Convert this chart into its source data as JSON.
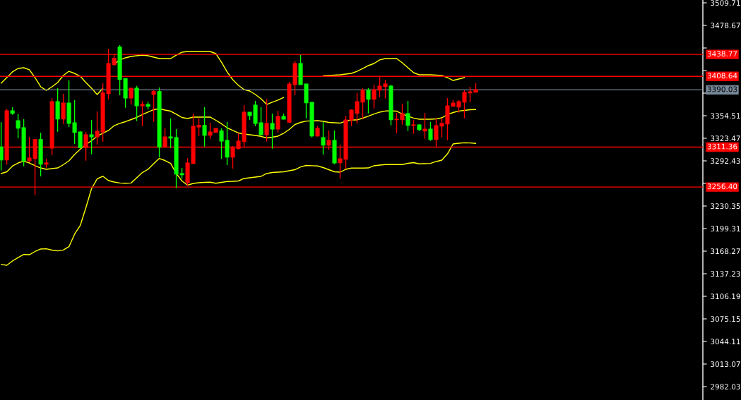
{
  "chart_data": {
    "type": "candlestick",
    "categories": [
      null,
      null,
      null,
      null,
      null,
      null,
      null,
      null,
      null,
      null,
      null,
      null,
      null,
      null,
      null,
      null,
      null,
      null,
      null,
      null,
      null,
      null,
      null,
      null,
      null,
      null,
      null,
      null,
      null,
      null,
      null,
      null,
      null,
      null,
      null,
      null,
      null,
      null,
      null,
      null,
      null,
      null,
      null,
      null,
      null,
      null,
      null,
      null,
      null,
      null,
      null,
      null,
      null,
      null,
      null,
      null,
      null,
      null,
      null,
      null,
      null,
      null,
      null,
      null,
      null,
      null,
      null,
      null,
      null,
      null,
      null,
      null,
      null,
      null,
      null,
      null,
      null,
      null,
      null,
      null,
      null,
      null,
      null,
      null,
      null,
      null,
      null,
      null,
      null,
      null,
      null,
      null,
      null,
      null,
      null,
      null,
      null,
      null,
      null,
      null,
      null,
      null,
      null,
      null,
      null,
      null,
      null,
      null,
      null,
      null,
      null,
      null,
      null,
      null,
      null,
      null,
      null,
      null,
      null,
      null,
      null,
      null,
      null,
      null,
      null
    ],
    "ohlc": [
      [
        3311.5,
        3345.5,
        3279.2,
        3293.7
      ],
      [
        3293.7,
        3363.9,
        3287.3,
        3361.3
      ],
      [
        3361.3,
        3366.2,
        3355.8,
        3357.7
      ],
      [
        3347.7,
        3356.8,
        3323.5,
        3337.4
      ],
      [
        3338.0,
        3349.7,
        3285.0,
        3292.7
      ],
      [
        3292.7,
        3325.4,
        3290.5,
        3296.3
      ],
      [
        3295.6,
        3321.8,
        3245.2,
        3321.8
      ],
      [
        3321.8,
        3331.2,
        3271.1,
        3287.9
      ],
      [
        3287.9,
        3295.4,
        3283.0,
        3289.5
      ],
      [
        3309.9,
        3378.8,
        3300.2,
        3373.9
      ],
      [
        3373.9,
        3392.4,
        3332.5,
        3350.0
      ],
      [
        3350.0,
        3384.6,
        3343.2,
        3372.0
      ],
      [
        3372.0,
        3403.0,
        3339.0,
        3343.9
      ],
      [
        3344.8,
        3375.9,
        3315.7,
        3331.5
      ],
      [
        3332.2,
        3333.2,
        3309.9,
        3310.6
      ],
      [
        3310.6,
        3332.2,
        3292.7,
        3328.3
      ],
      [
        3328.3,
        3348.7,
        3301.5,
        3325.4
      ],
      [
        3325.4,
        3360.3,
        3314.8,
        3333.2
      ],
      [
        3332.2,
        3399.1,
        3318.6,
        3385.8
      ],
      [
        3384.9,
        3446.7,
        3376.8,
        3426.3
      ],
      [
        3424.7,
        3439.9,
        3423.1,
        3433.4
      ],
      [
        3448.9,
        3451.5,
        3382.7,
        3404.3
      ],
      [
        3405.3,
        3405.3,
        3365.5,
        3378.8
      ],
      [
        3378.8,
        3392.4,
        3370.0,
        3392.4
      ],
      [
        3392.4,
        3395.6,
        3347.1,
        3368.1
      ],
      [
        3368.1,
        3374.9,
        3340.3,
        3370.0
      ],
      [
        3370.0,
        3373.6,
        3363.3,
        3367.4
      ],
      [
        3383.9,
        3389.4,
        3346.1,
        3387.8
      ],
      [
        3387.8,
        3393.3,
        3297.0,
        3311.5
      ],
      [
        3311.5,
        3337.1,
        3309.9,
        3325.4
      ],
      [
        3325.4,
        3350.9,
        3309.9,
        3323.8
      ],
      [
        3324.5,
        3336.1,
        3254.9,
        3274.3
      ],
      [
        3275.0,
        3282.7,
        3267.9,
        3273.3
      ],
      [
        3262.4,
        3296.3,
        3258.2,
        3289.5
      ],
      [
        3288.9,
        3357.4,
        3288.9,
        3340.0
      ],
      [
        3339.0,
        3350.9,
        3326.7,
        3341.2
      ],
      [
        3341.2,
        3366.2,
        3312.1,
        3327.6
      ],
      [
        3327.6,
        3344.8,
        3322.8,
        3332.2
      ],
      [
        3331.5,
        3337.1,
        3331.5,
        3337.1
      ],
      [
        3333.5,
        3337.1,
        3295.4,
        3319.6
      ],
      [
        3320.6,
        3345.8,
        3286.6,
        3297.6
      ],
      [
        3297.6,
        3313.1,
        3281.8,
        3310.2
      ],
      [
        3309.2,
        3330.3,
        3308.3,
        3319.6
      ],
      [
        3318.9,
        3369.1,
        3311.5,
        3359.4
      ],
      [
        3359.4,
        3359.4,
        3348.7,
        3354.8
      ],
      [
        3369.1,
        3374.9,
        3340.3,
        3343.9
      ],
      [
        3344.8,
        3366.2,
        3327.6,
        3328.3
      ],
      [
        3328.3,
        3377.1,
        3318.9,
        3343.9
      ],
      [
        3343.9,
        3357.4,
        3309.2,
        3336.1
      ],
      [
        3336.1,
        3361.3,
        3331.5,
        3353.6
      ],
      [
        3353.6,
        3357.4,
        3349.7,
        3349.7
      ],
      [
        3345.5,
        3401.1,
        3344.8,
        3398.2
      ],
      [
        3397.2,
        3430.2,
        3382.9,
        3426.3
      ],
      [
        3426.3,
        3437.9,
        3397.2,
        3397.2
      ],
      [
        3398.2,
        3398.2,
        3350.9,
        3372.3
      ],
      [
        3373.0,
        3373.0,
        3324.5,
        3326.7
      ],
      [
        3326.7,
        3340.0,
        3325.7,
        3337.1
      ],
      [
        3324.5,
        3345.8,
        3301.2,
        3314.1
      ],
      [
        3314.1,
        3334.2,
        3307.3,
        3320.6
      ],
      [
        3320.6,
        3334.2,
        3287.9,
        3289.5
      ],
      [
        3289.8,
        3314.8,
        3267.9,
        3295.4
      ],
      [
        3294.7,
        3354.5,
        3281.5,
        3348.7
      ],
      [
        3348.7,
        3363.3,
        3340.3,
        3362.3
      ],
      [
        3357.7,
        3385.6,
        3344.1,
        3373.9
      ],
      [
        3373.2,
        3392.4,
        3349.7,
        3389.4
      ],
      [
        3389.4,
        3392.4,
        3357.7,
        3377.1
      ],
      [
        3377.1,
        3397.2,
        3364.5,
        3390.4
      ],
      [
        3389.7,
        3407.9,
        3380.0,
        3395.3
      ],
      [
        3394.6,
        3404.0,
        3378.1,
        3398.2
      ],
      [
        3395.3,
        3397.2,
        3341.2,
        3349.0
      ],
      [
        3349.0,
        3358.4,
        3330.6,
        3349.7
      ],
      [
        3349.0,
        3371.0,
        3342.2,
        3357.4
      ],
      [
        3357.4,
        3374.9,
        3333.5,
        3341.2
      ],
      [
        3341.2,
        3348.7,
        3329.6,
        3341.9
      ],
      [
        3341.9,
        3342.9,
        3333.5,
        3335.4
      ],
      [
        3333.5,
        3358.4,
        3322.8,
        3336.1
      ],
      [
        3336.1,
        3345.8,
        3319.9,
        3321.8
      ],
      [
        3321.8,
        3350.9,
        3312.1,
        3340.9
      ],
      [
        3340.3,
        3351.6,
        3324.7,
        3343.9
      ],
      [
        3343.2,
        3378.8,
        3320.9,
        3368.1
      ],
      [
        3367.4,
        3375.9,
        3367.4,
        3372.0
      ],
      [
        3366.5,
        3375.9,
        3358.7,
        3373.9
      ],
      [
        3373.2,
        3389.4,
        3350.9,
        3386.5
      ],
      [
        3385.8,
        3394.3,
        3373.2,
        3387.5
      ],
      [
        3386.8,
        3399.1,
        3386.5,
        3390.4
      ],
      null,
      null,
      null,
      null,
      null,
      null,
      null,
      null,
      null,
      null,
      null,
      null,
      null,
      null,
      null,
      null,
      null,
      null,
      null,
      null,
      null,
      null,
      null,
      null,
      null,
      null,
      null,
      null,
      null,
      null,
      null,
      null,
      null,
      null,
      null,
      null,
      null,
      null,
      null,
      null
    ],
    "colors": [
      "#00ff00",
      "#ff0000",
      "#00ff00",
      "#00ff00",
      "#00ff00",
      "#ff0000",
      "#ff0000",
      "#00ff00",
      "#ff0000",
      "#ff0000",
      "#00ff00",
      "#ff0000",
      "#00ff00",
      "#00ff00",
      "#00ff00",
      "#ff0000",
      "#00ff00",
      "#ff0000",
      "#ff0000",
      "#ff0000",
      "#ff0000",
      "#00ff00",
      "#00ff00",
      "#ff0000",
      "#00ff00",
      "#ff0000",
      "#00ff00",
      "#ff0000",
      "#00ff00",
      "#ff0000",
      "#00ff00",
      "#00ff00",
      "#00ff00",
      "#ff0000",
      "#ff0000",
      "#ff0000",
      "#00ff00",
      "#ff0000",
      "#ff0000",
      "#00ff00",
      "#00ff00",
      "#ff0000",
      "#ff0000",
      "#ff0000",
      "#00ff00",
      "#00ff00",
      "#00ff00",
      "#ff0000",
      "#00ff00",
      "#ff0000",
      "#00ff00",
      "#ff0000",
      "#ff0000",
      "#00ff00",
      "#00ff00",
      "#00ff00",
      "#ff0000",
      "#00ff00",
      "#ff0000",
      "#00ff00",
      "#ff0000",
      "#ff0000",
      "#ff0000",
      "#ff0000",
      "#ff0000",
      "#00ff00",
      "#ff0000",
      "#ff0000",
      "#ff0000",
      "#00ff00",
      "#ff0000",
      "#ff0000",
      "#00ff00",
      "#ff0000",
      "#00ff00",
      "#ff0000",
      "#00ff00",
      "#ff0000",
      "#ff0000",
      "#ff0000",
      "#ff0000",
      "#ff0000",
      "#ff0000",
      "#ff0000",
      "#ff0000",
      null,
      null,
      null,
      null,
      null,
      null,
      null,
      null,
      null,
      null,
      null,
      null,
      null,
      null,
      null,
      null,
      null,
      null,
      null,
      null,
      null,
      null,
      null,
      null,
      null,
      null,
      null,
      null,
      null,
      null,
      null,
      null,
      null,
      null,
      null,
      null,
      null,
      null,
      null,
      null
    ],
    "series": [
      {
        "type": "line",
        "color": "#ffff00",
        "values": [
          3399.1,
          3406.9,
          3414.7,
          3419.5,
          3420.5,
          3417.6,
          3406.9,
          3394.3,
          3389.4,
          3394.3,
          3400.1,
          3409.8,
          3415.6,
          3412.7,
          3408.8,
          3400.1,
          3392.4,
          3383.6,
          3392.4,
          null,
          3425.3,
          3431.2,
          3434.1,
          3436.0,
          3437.0,
          3437.9,
          3437.0,
          3435.0,
          3433.1,
          3433.1,
          3433.1,
          3437.9,
          3441.8,
          3442.8,
          3442.8,
          3442.8,
          3442.8,
          3442.8,
          3439.9,
          3428.2,
          3414.7,
          3404.0,
          3396.2,
          3390.4,
          3388.5,
          3383.6,
          3377.8,
          3370.0,
          3373.0,
          3375.9,
          3379.7,
          null,
          null,
          null,
          null,
          null,
          null,
          3409.3,
          3409.8,
          3410.3,
          3410.8,
          3411.8,
          3412.7,
          3415.6,
          3419.5,
          3423.4,
          3426.3,
          3431.2,
          3433.1,
          3433.1,
          3433.1,
          3427.3,
          3420.5,
          3413.7,
          3410.8,
          3410.8,
          3410.8,
          3410.3,
          3409.8,
          3406.9,
          3403.0,
          3405.0,
          3406.9,
          null,
          null,
          null,
          null,
          null,
          null,
          null,
          null,
          null,
          null,
          null,
          null,
          null,
          null,
          null,
          null,
          null,
          null,
          null,
          null,
          null,
          null,
          null,
          null,
          null,
          null,
          null,
          null,
          null,
          null,
          null,
          null,
          null,
          null,
          null,
          null,
          null,
          null,
          null,
          null,
          null,
          null
        ]
      },
      {
        "type": "line",
        "color": "#ffff00",
        "values": [
          3275.0,
          3277.4,
          3285.2,
          3289.5,
          3292.0,
          3289.5,
          3285.7,
          3282.7,
          3280.8,
          3281.8,
          3282.7,
          3287.1,
          3292.4,
          3301.2,
          3308.4,
          3314.8,
          3320.1,
          3326.4,
          3330.3,
          3334.2,
          3340.9,
          3343.9,
          3346.3,
          3349.2,
          3352.1,
          3356.0,
          3359.4,
          3362.8,
          3364.2,
          3362.3,
          3360.8,
          3356.5,
          3352.1,
          3350.6,
          3352.6,
          3352.6,
          3352.6,
          3352.6,
          3348.2,
          3343.4,
          3338.0,
          3334.2,
          3330.8,
          3329.3,
          3328.3,
          3327.4,
          3326.1,
          3324.0,
          3324.9,
          3326.4,
          3330.3,
          3335.6,
          3342.4,
          3345.3,
          3347.1,
          3347.4,
          3347.7,
          3346.8,
          3345.3,
          3344.8,
          3344.3,
          3347.2,
          3348.7,
          3348.7,
          3351.1,
          3354.0,
          3356.8,
          3359.4,
          3361.0,
          3361.0,
          3360.8,
          3356.9,
          3354.0,
          3351.3,
          3349.7,
          3349.7,
          3349.7,
          3350.2,
          3351.6,
          3356.0,
          3358.9,
          3361.0,
          3361.8,
          3362.7,
          3363.0,
          null,
          null,
          null,
          null,
          null,
          null,
          null,
          null,
          null,
          null,
          null,
          null,
          null,
          null,
          null,
          null,
          null,
          null,
          null,
          null,
          null,
          null,
          null,
          null,
          null,
          null,
          null,
          null,
          null,
          null,
          null,
          null,
          null,
          null,
          null,
          null,
          null,
          null,
          null,
          null
        ]
      },
      {
        "type": "line",
        "color": "#ffff00",
        "values": [
          3150.0,
          3148.9,
          3154.7,
          3159.5,
          3163.7,
          3163.4,
          3167.8,
          3171.2,
          3171.6,
          3169.7,
          3168.6,
          3169.9,
          3174.4,
          3191.6,
          3203.5,
          3227.9,
          3254.1,
          3267.7,
          3271.3,
          3265.3,
          3263.3,
          3262.0,
          3261.6,
          3262.0,
          3269.2,
          3276.4,
          3280.8,
          3288.6,
          3295.8,
          3292.9,
          3289.0,
          3275.0,
          3264.8,
          3259.0,
          3261.4,
          3262.4,
          3262.9,
          3263.1,
          3261.6,
          3262.9,
          3264.0,
          3264.3,
          3264.8,
          3268.2,
          3269.2,
          3270.1,
          3271.1,
          3275.0,
          3276.4,
          3276.9,
          3277.4,
          3278.9,
          3280.3,
          3284.0,
          3286.1,
          3285.8,
          3285.4,
          3283.2,
          3280.3,
          3277.4,
          3276.9,
          3280.8,
          3282.5,
          3282.5,
          3282.5,
          3282.7,
          3285.7,
          3286.6,
          3287.3,
          3287.3,
          3287.3,
          3287.3,
          3289.0,
          3290.0,
          3288.3,
          3288.6,
          3288.9,
          3291.5,
          3293.4,
          3302.1,
          3315.7,
          3316.7,
          3317.3,
          3317.0,
          3316.4,
          null,
          null,
          null,
          null,
          null,
          null,
          null,
          null,
          null,
          null,
          null,
          null,
          null,
          null,
          null,
          null,
          null,
          null,
          null,
          null,
          null,
          null,
          null,
          null,
          null,
          null,
          null,
          null,
          null,
          null,
          null,
          null,
          null,
          null,
          null,
          null,
          null,
          null,
          null,
          null
        ]
      }
    ],
    "ylim": [
      2963.6,
      3513.6
    ],
    "yticks": [
      3509.71,
      3478.67,
      {
        "value": 3447.63,
        "label": null
      },
      {
        "value": 3416.59,
        "label": null
      },
      {
        "value": 3385.55,
        "label": null
      },
      3354.51,
      3323.47,
      3292.43,
      {
        "value": 3261.39,
        "label": null
      },
      3230.35,
      3199.31,
      3168.27,
      3137.23,
      3106.19,
      3075.15,
      3044.11,
      3013.07,
      2982.03
    ],
    "ref_lines": [
      {
        "axis": "y",
        "value": 3438.77,
        "label": "3438.77",
        "color": "#ff0000"
      },
      {
        "axis": "y",
        "value": 3408.64,
        "label": "3408.64",
        "color": "#ff0000"
      },
      {
        "axis": "y",
        "value": 3390.03,
        "label": "3390.03",
        "color": "#778899"
      },
      {
        "axis": "y",
        "value": 3311.36,
        "label": "3311.36",
        "color": "#ff0000"
      },
      {
        "axis": "y",
        "value": 3256.4,
        "label": "3256.40",
        "color": "#ff0000"
      }
    ],
    "tick_labels": "y",
    "grid": false
  }
}
